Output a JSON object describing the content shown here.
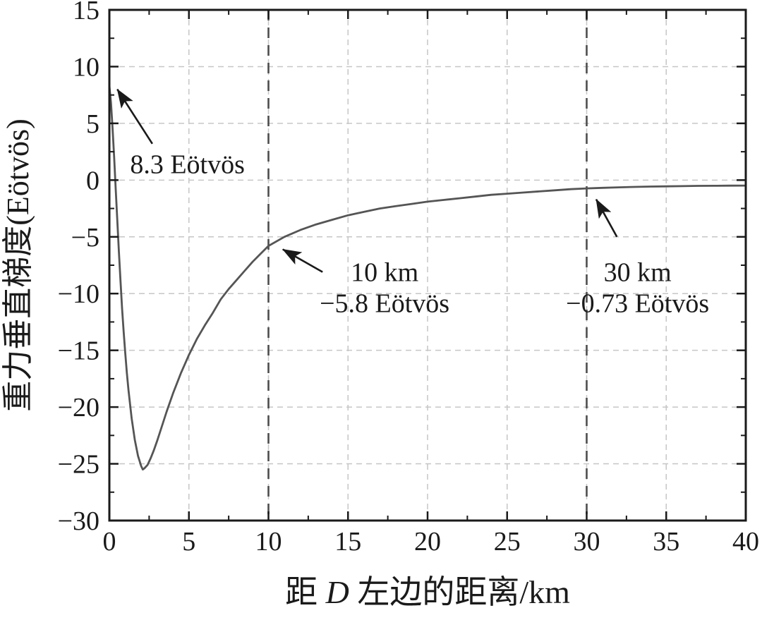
{
  "figure": {
    "background": "#ffffff"
  },
  "chart_data": {
    "type": "line",
    "title": "",
    "xlabel": "距D左边的距离/km",
    "xlabel_parts": {
      "prefix": "距 ",
      "italic": "D",
      "suffix": " 左边的距离/km"
    },
    "ylabel": "重力垂直梯度(Eötvös)",
    "xlim": [
      0,
      40
    ],
    "ylim": [
      -30,
      15
    ],
    "xticks": [
      0,
      5,
      10,
      15,
      20,
      25,
      30,
      35,
      40
    ],
    "yticks": [
      -30,
      -25,
      -20,
      -15,
      -10,
      -5,
      0,
      5,
      10,
      15
    ],
    "grid": {
      "show": true,
      "dash": "8 6"
    },
    "legend": {
      "show": false
    },
    "colors": {
      "background": "#ffffff",
      "frame": "#1a1a1a",
      "grid": "#c6c6c6",
      "vline": "#4d4d4d",
      "curve": "#555555",
      "annotation": "#1a1a1a",
      "text": "#1a1a1a"
    },
    "vlines": [
      {
        "x": 10
      },
      {
        "x": 30
      }
    ],
    "series": [
      {
        "name": "gravity-vertical-gradient",
        "color": "#555555",
        "x": [
          0,
          0.1,
          0.2,
          0.3,
          0.4,
          0.5,
          0.6,
          0.7,
          0.8,
          0.9,
          1.0,
          1.1,
          1.2,
          1.4,
          1.6,
          1.8,
          2.0,
          2.1,
          2.2,
          2.4,
          2.6,
          2.8,
          3.0,
          3.3,
          3.6,
          4.0,
          4.5,
          5.0,
          5.5,
          6.0,
          6.5,
          7.0,
          7.5,
          8.0,
          8.5,
          9.0,
          9.5,
          10,
          11,
          12,
          13,
          14,
          15,
          16,
          17,
          18,
          19,
          20,
          21,
          22,
          23,
          24,
          25,
          26,
          27,
          28,
          29,
          30,
          31,
          32,
          33,
          34,
          35,
          36,
          37,
          38,
          39,
          40
        ],
        "y": [
          8.3,
          6.8,
          4.6,
          2.0,
          -0.8,
          -3.6,
          -6.3,
          -8.9,
          -11.3,
          -13.4,
          -15.3,
          -17.0,
          -18.5,
          -21.0,
          -22.9,
          -24.3,
          -25.2,
          -25.5,
          -25.4,
          -25.1,
          -24.5,
          -23.8,
          -23.0,
          -21.7,
          -20.4,
          -18.8,
          -17.0,
          -15.4,
          -14.0,
          -12.8,
          -11.7,
          -10.5,
          -9.6,
          -8.8,
          -8.0,
          -7.2,
          -6.5,
          -5.8,
          -5.0,
          -4.4,
          -3.9,
          -3.5,
          -3.1,
          -2.8,
          -2.5,
          -2.3,
          -2.1,
          -1.9,
          -1.75,
          -1.6,
          -1.45,
          -1.3,
          -1.2,
          -1.1,
          -1.0,
          -0.9,
          -0.8,
          -0.73,
          -0.68,
          -0.64,
          -0.6,
          -0.57,
          -0.55,
          -0.53,
          -0.51,
          -0.5,
          -0.49,
          -0.48
        ]
      }
    ],
    "key_points": [
      {
        "x": 0,
        "y": 8.3,
        "label": "8.3 Eötvös"
      },
      {
        "x": 10,
        "y": -5.8,
        "label": "10 km, −5.8 Eötvös"
      },
      {
        "x": 30,
        "y": -0.73,
        "label": "30 km, −0.73 Eötvös"
      }
    ],
    "annotations": [
      {
        "id": "start-value",
        "lines": [
          "8.3 Eötvös"
        ],
        "anchor": "start",
        "text_x": 1.3,
        "text_y": 0.6,
        "arrow": {
          "x1": 2.7,
          "y1": 3.2,
          "x2": 0.5,
          "y2": 8.0
        }
      },
      {
        "id": "10km-value",
        "lines": [
          "10 km",
          "−5.8 Eötvös"
        ],
        "anchor": "middle",
        "text_x": 17.3,
        "text_y": -8.9,
        "arrow": {
          "x1": 13.4,
          "y1": -8.1,
          "x2": 10.9,
          "y2": -6.1
        }
      },
      {
        "id": "30km-value",
        "lines": [
          "30 km",
          "−0.73 Eötvös"
        ],
        "anchor": "middle",
        "text_x": 33.2,
        "text_y": -8.9,
        "arrow": {
          "x1": 31.9,
          "y1": -5.0,
          "x2": 30.6,
          "y2": -1.7
        }
      }
    ]
  }
}
